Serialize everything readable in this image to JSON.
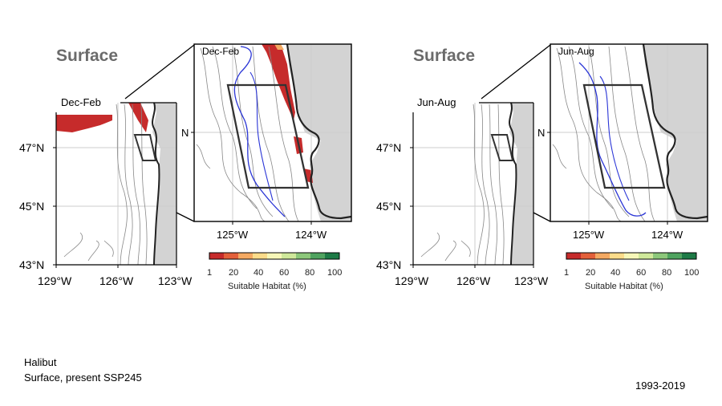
{
  "panels": [
    {
      "depth_label": "Surface",
      "season_main": "Dec-Feb",
      "season_inset": "Dec-Feb",
      "main_lat_ticks": [
        "47°N",
        "45°N",
        "43°N"
      ],
      "main_lon_ticks": [
        "129°W",
        "126°W",
        "123°W"
      ],
      "inset_lat_tick": "N",
      "inset_lon_ticks": [
        "125°W",
        "124°W"
      ]
    },
    {
      "depth_label": "Surface",
      "season_main": "Jun-Aug",
      "season_inset": "Jun-Aug",
      "main_lat_ticks": [
        "47°N",
        "45°N",
        "43°N"
      ],
      "main_lon_ticks": [
        "129°W",
        "126°W",
        "123°W"
      ],
      "inset_lat_tick": "N",
      "inset_lon_ticks": [
        "125°W",
        "124°W"
      ]
    }
  ],
  "colorbar": {
    "label": "Suitable Habitat (%)",
    "ticks": [
      "1",
      "20",
      "40",
      "60",
      "80",
      "100"
    ],
    "colors": [
      "#c62b2b",
      "#e3603a",
      "#f4a962",
      "#fcdc8a",
      "#f7f7b8",
      "#cfe89a",
      "#8cc77a",
      "#4fa35f",
      "#1d7a46"
    ]
  },
  "footer": {
    "species": "Halibut",
    "scenario": "Surface, present SSP245",
    "period": "1993-2019"
  },
  "colors": {
    "land": "#d3d3d3",
    "coast": "#222222",
    "isobath": "#888888",
    "blue_contour": "#2a35d6",
    "habitat_high": "#c62b2b",
    "box": "#333333"
  }
}
